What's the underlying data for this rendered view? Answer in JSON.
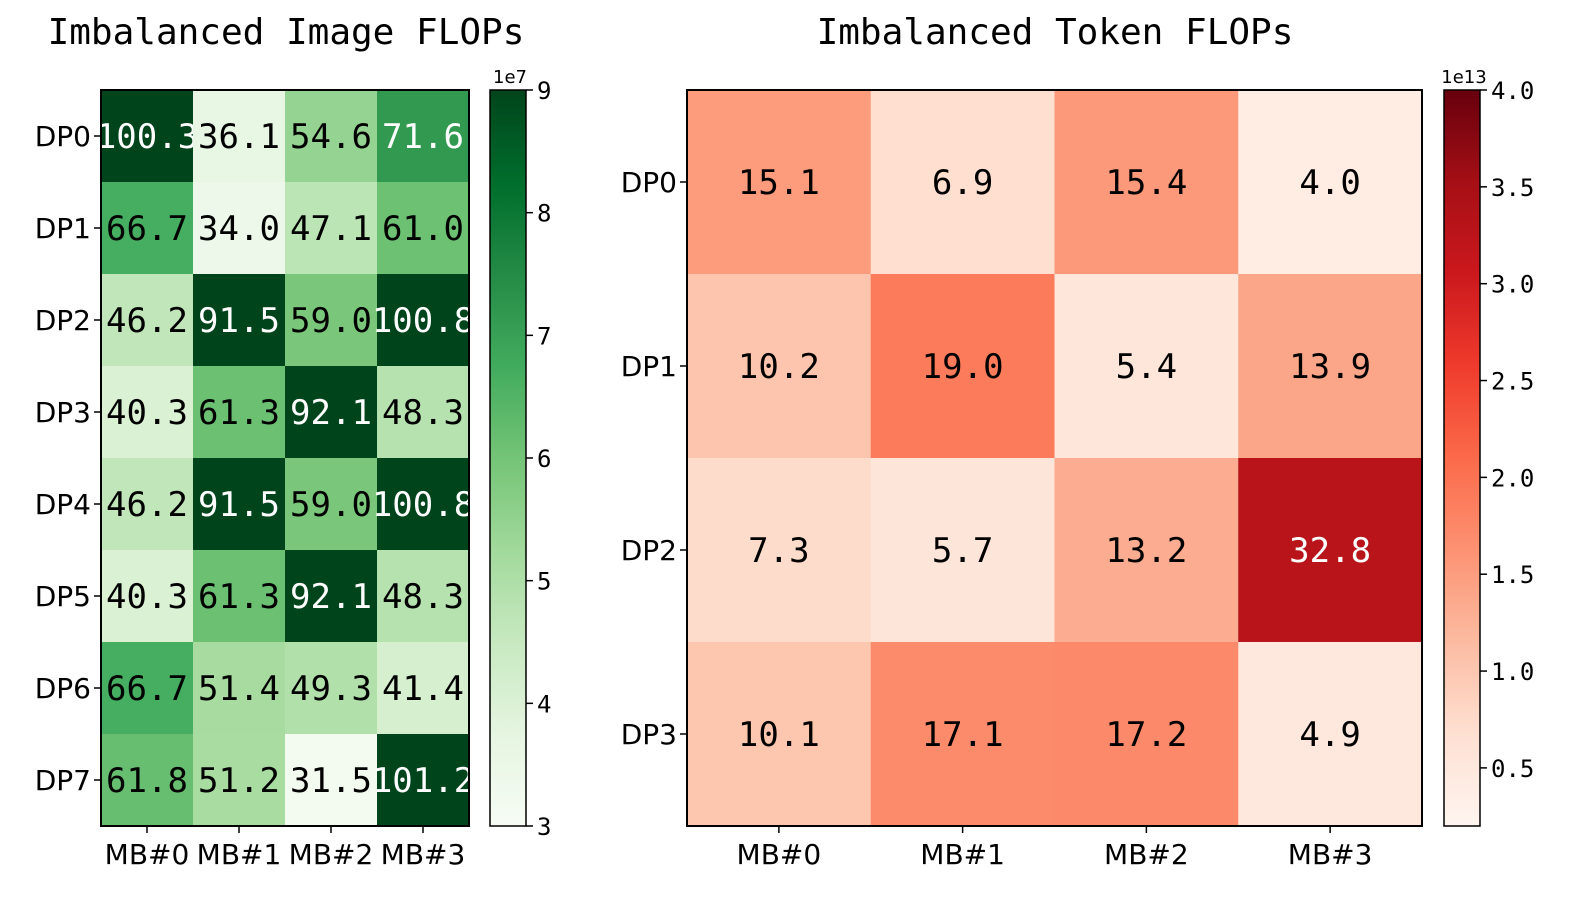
{
  "chart_data": [
    {
      "type": "heatmap",
      "title": "Imbalanced Image FLOPs",
      "colormap": "Greens",
      "rows": [
        "DP0",
        "DP1",
        "DP2",
        "DP3",
        "DP4",
        "DP5",
        "DP6",
        "DP7"
      ],
      "cols": [
        "MB#0",
        "MB#1",
        "MB#2",
        "MB#3"
      ],
      "values": [
        [
          100.3,
          36.1,
          54.6,
          71.6
        ],
        [
          66.7,
          34.0,
          47.1,
          61.0
        ],
        [
          46.2,
          91.5,
          59.0,
          100.8
        ],
        [
          40.3,
          61.3,
          92.1,
          48.3
        ],
        [
          46.2,
          91.5,
          59.0,
          100.8
        ],
        [
          40.3,
          61.3,
          92.1,
          48.3
        ],
        [
          66.7,
          51.4,
          49.3,
          41.4
        ],
        [
          61.8,
          51.2,
          31.5,
          101.2
        ]
      ],
      "cell_labels": [
        [
          "100.3",
          "36.1",
          "54.6",
          "71.6"
        ],
        [
          "66.7",
          "34.0",
          "47.1",
          "61.0"
        ],
        [
          "46.2",
          "91.5",
          "59.0",
          "100.8"
        ],
        [
          "40.3",
          "61.3",
          "92.1",
          "48.3"
        ],
        [
          "46.2",
          "91.5",
          "59.0",
          "100.8"
        ],
        [
          "40.3",
          "61.3",
          "92.1",
          "48.3"
        ],
        [
          "66.7",
          "51.4",
          "49.3",
          "41.4"
        ],
        [
          "61.8",
          "51.2",
          "31.5",
          "101.2"
        ]
      ],
      "colorbar": {
        "range": [
          3,
          9
        ],
        "ticks": [
          "3",
          "4",
          "5",
          "6",
          "7",
          "8",
          "9"
        ],
        "exponent_label": "1e7"
      }
    },
    {
      "type": "heatmap",
      "title": "Imbalanced Token FLOPs",
      "colormap": "Reds",
      "rows": [
        "DP0",
        "DP1",
        "DP2",
        "DP3"
      ],
      "cols": [
        "MB#0",
        "MB#1",
        "MB#2",
        "MB#3"
      ],
      "values": [
        [
          15.1,
          6.9,
          15.4,
          4.0
        ],
        [
          10.2,
          19.0,
          5.4,
          13.9
        ],
        [
          7.3,
          5.7,
          13.2,
          32.8
        ],
        [
          10.1,
          17.1,
          17.2,
          4.9
        ]
      ],
      "cell_labels": [
        [
          "15.1",
          "6.9",
          "15.4",
          "4.0"
        ],
        [
          "10.2",
          "19.0",
          "5.4",
          "13.9"
        ],
        [
          "7.3",
          "5.7",
          "13.2",
          "32.8"
        ],
        [
          "10.1",
          "17.1",
          "17.2",
          "4.9"
        ]
      ],
      "colorbar": {
        "range": [
          0.2,
          4.0
        ],
        "ticks": [
          "0.5",
          "1.0",
          "1.5",
          "2.0",
          "2.5",
          "3.0",
          "3.5",
          "4.0"
        ],
        "exponent_label": "1e13"
      }
    }
  ]
}
